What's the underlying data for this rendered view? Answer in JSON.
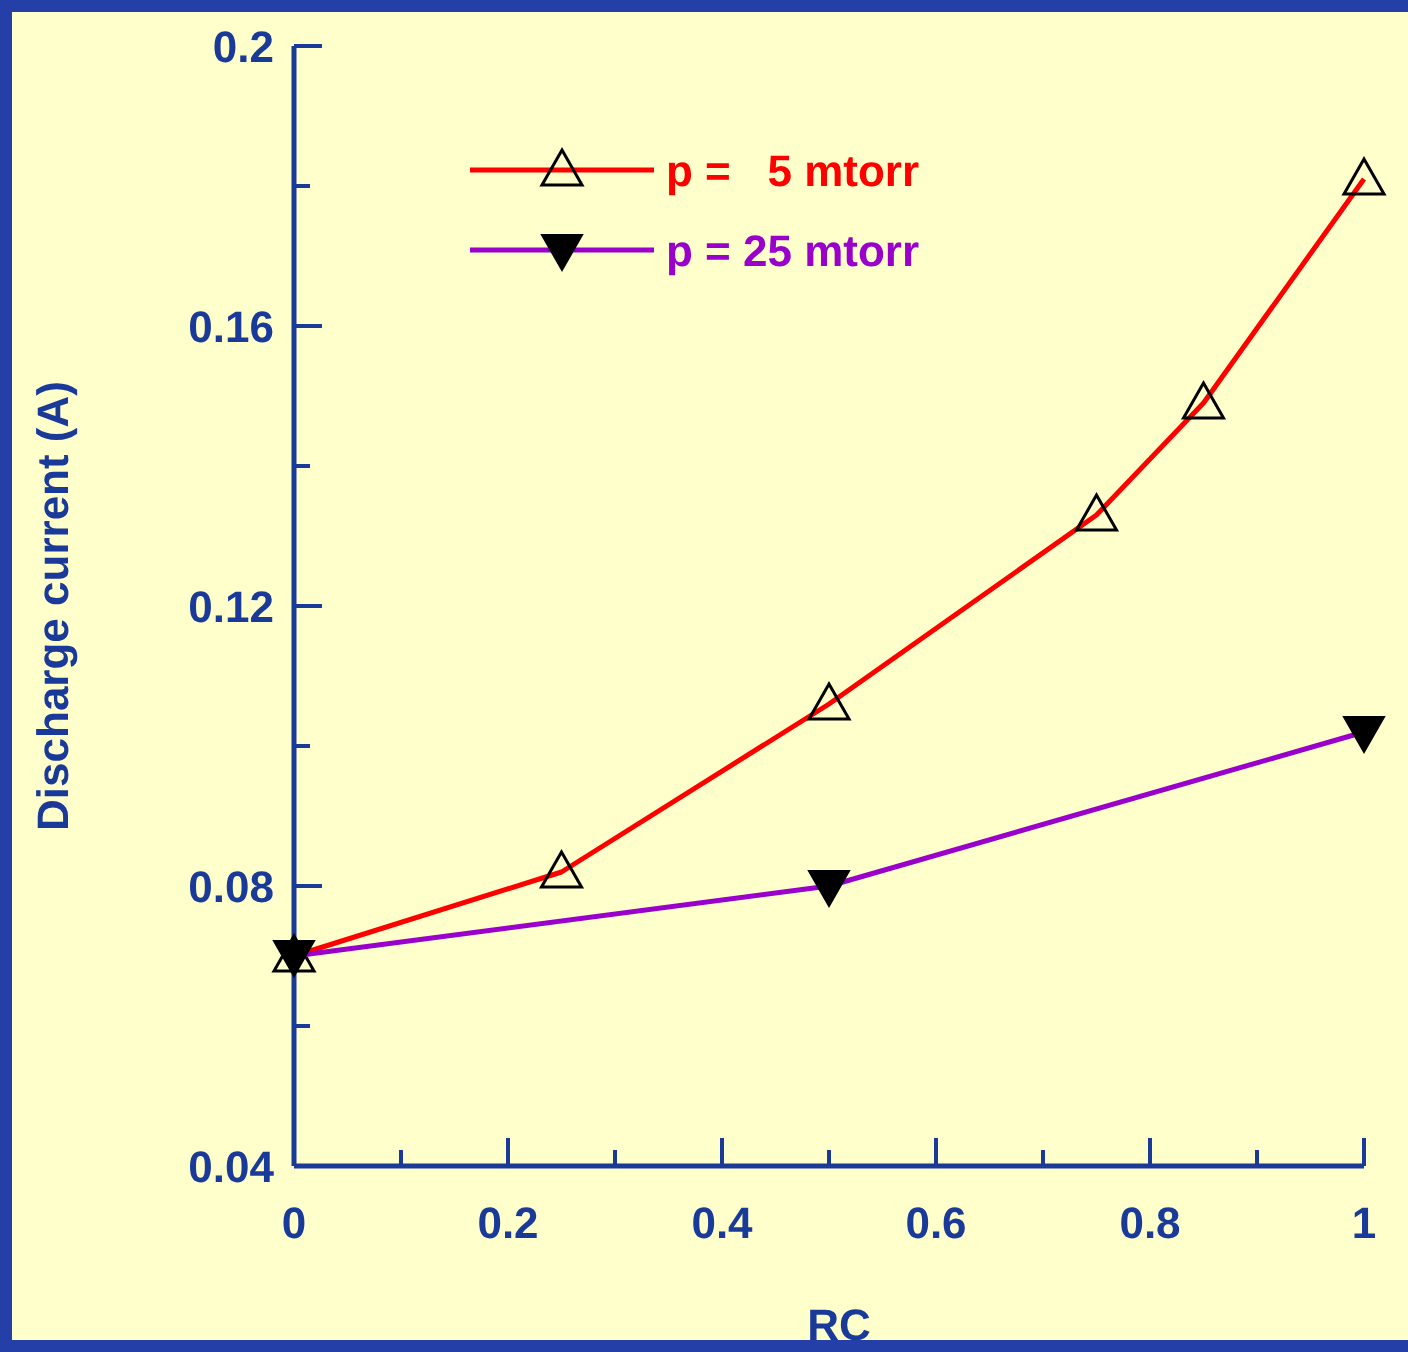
{
  "chart_data": {
    "type": "line",
    "xlabel": "RC",
    "ylabel": "Discharge current (A)",
    "xlim": [
      0,
      1
    ],
    "ylim": [
      0.04,
      0.2
    ],
    "xticks": [
      0,
      {
        "value": 0.1,
        "label": null
      },
      0.2,
      {
        "value": 0.3,
        "label": null
      },
      0.4,
      {
        "value": 0.5,
        "label": null
      },
      0.6,
      {
        "value": 0.7,
        "label": null
      },
      0.8,
      {
        "value": 0.9,
        "label": null
      },
      1
    ],
    "yticks": [
      0.04,
      {
        "value": 0.06,
        "label": null
      },
      0.08,
      {
        "value": 0.1,
        "label": null
      },
      0.12,
      {
        "value": 0.14,
        "label": null
      },
      0.16,
      {
        "value": 0.18,
        "label": null
      },
      0.2
    ],
    "grid": false,
    "legend": "top left",
    "line_style": "solid",
    "series": [
      {
        "name": "p =   5 mtorr",
        "color": "#ff0000",
        "marker": "triangle",
        "x": [
          0,
          0.25,
          0.5,
          0.75,
          0.85,
          1
        ],
        "values": [
          0.07,
          0.082,
          0.106,
          0.133,
          0.149,
          0.181
        ]
      },
      {
        "name": "p = 25 mtorr",
        "color": "#9900cc",
        "marker": "triangle-down",
        "x": [
          0,
          0.5,
          1
        ],
        "values": [
          0.07,
          0.08,
          0.102
        ]
      }
    ]
  }
}
